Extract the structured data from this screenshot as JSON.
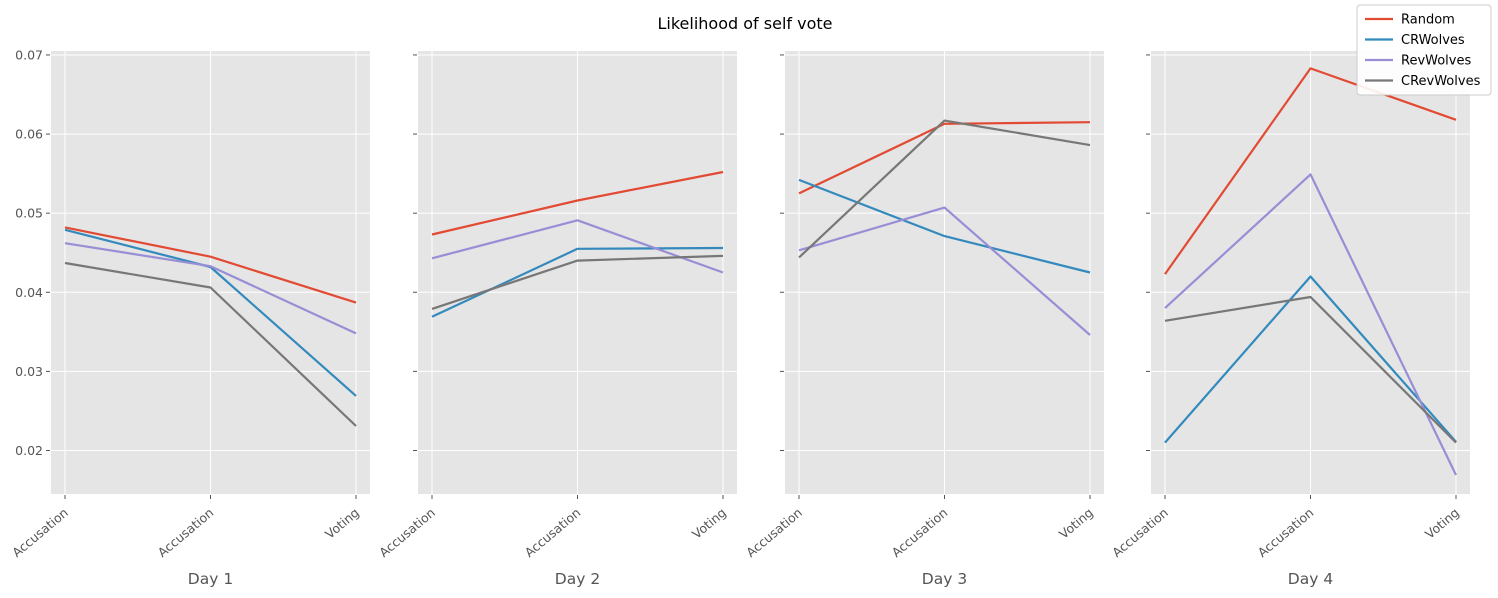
{
  "figure": {
    "title": "Likelihood of self vote"
  },
  "legend": {
    "placement": "top-right",
    "entries": [
      "Random",
      "CRWolves",
      "RevWolves",
      "CRevWolves"
    ]
  },
  "colors": {
    "Random": "#e24a33",
    "CRWolves": "#348abd",
    "RevWolves": "#988ed5",
    "CRevWolves": "#777777",
    "panel_bg": "#e5e5e5",
    "grid": "#ffffff"
  },
  "chart_data": [
    {
      "type": "line",
      "xlabel": "Day 1",
      "categories": [
        "Accusation",
        "Accusation",
        "Voting"
      ],
      "ylim": [
        0.0145,
        0.0705
      ],
      "yticks": [
        "0.02",
        "0.03",
        "0.04",
        "0.05",
        "0.06",
        "0.07"
      ],
      "grid": true,
      "series": [
        {
          "name": "Random",
          "values": [
            0.0482,
            0.0445,
            0.0387
          ]
        },
        {
          "name": "CRWolves",
          "values": [
            0.0479,
            0.0432,
            0.0269
          ]
        },
        {
          "name": "RevWolves",
          "values": [
            0.0462,
            0.0433,
            0.0348
          ]
        },
        {
          "name": "CRevWolves",
          "values": [
            0.0437,
            0.0406,
            0.0231
          ]
        }
      ]
    },
    {
      "type": "line",
      "xlabel": "Day 2",
      "categories": [
        "Accusation",
        "Accusation",
        "Voting"
      ],
      "ylim": [
        0.0145,
        0.0705
      ],
      "grid": true,
      "series": [
        {
          "name": "Random",
          "values": [
            0.0473,
            0.0516,
            0.0552
          ]
        },
        {
          "name": "CRWolves",
          "values": [
            0.0369,
            0.0455,
            0.0456
          ]
        },
        {
          "name": "RevWolves",
          "values": [
            0.0443,
            0.0491,
            0.0425
          ]
        },
        {
          "name": "CRevWolves",
          "values": [
            0.0379,
            0.044,
            0.0446
          ]
        }
      ]
    },
    {
      "type": "line",
      "xlabel": "Day 3",
      "categories": [
        "Accusation",
        "Accusation",
        "Voting"
      ],
      "ylim": [
        0.0145,
        0.0705
      ],
      "grid": true,
      "series": [
        {
          "name": "Random",
          "values": [
            0.0525,
            0.0613,
            0.0615
          ]
        },
        {
          "name": "CRWolves",
          "values": [
            0.0542,
            0.0471,
            0.0425
          ]
        },
        {
          "name": "RevWolves",
          "values": [
            0.0453,
            0.0507,
            0.0346
          ]
        },
        {
          "name": "CRevWolves",
          "values": [
            0.0444,
            0.0617,
            0.0586
          ]
        }
      ]
    },
    {
      "type": "line",
      "xlabel": "Day 4",
      "categories": [
        "Accusation",
        "Accusation",
        "Voting"
      ],
      "ylim": [
        0.0145,
        0.0705
      ],
      "grid": true,
      "series": [
        {
          "name": "Random",
          "values": [
            0.0423,
            0.0683,
            0.0618
          ]
        },
        {
          "name": "CRWolves",
          "values": [
            0.021,
            0.042,
            0.0211
          ]
        },
        {
          "name": "RevWolves",
          "values": [
            0.038,
            0.0549,
            0.0169
          ]
        },
        {
          "name": "CRevWolves",
          "values": [
            0.0364,
            0.0394,
            0.021
          ]
        }
      ]
    }
  ]
}
